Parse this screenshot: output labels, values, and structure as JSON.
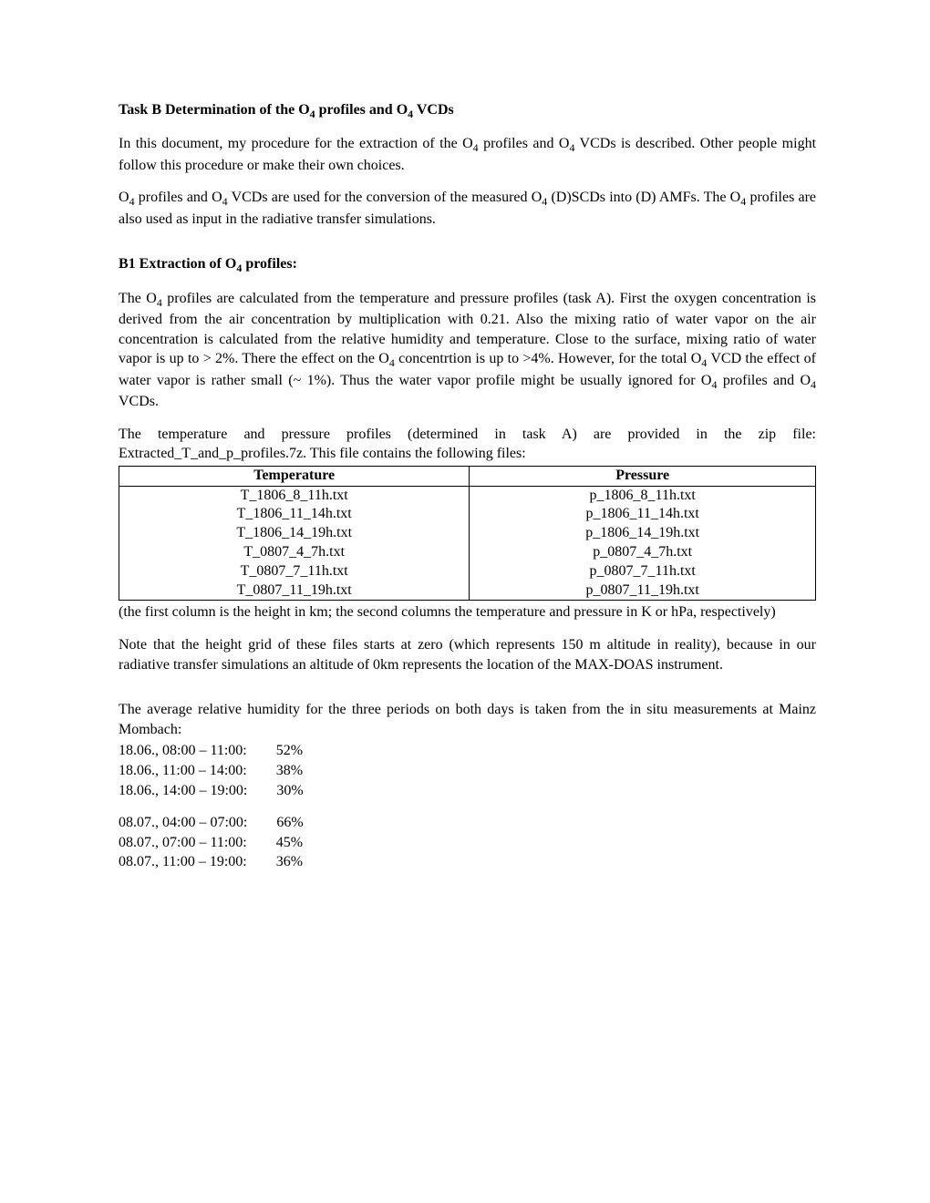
{
  "title_prefix": "Task B Determination of the O",
  "title_suffix": " profiles and O",
  "title_end": " VCDs",
  "sub4": "4",
  "p1a": "In this document, my procedure for the extraction of the O",
  "p1b": " profiles and O",
  "p1c": " VCDs is described. Other people might follow this procedure or make their own choices.",
  "p2a": "O",
  "p2b": " profiles and O",
  "p2c": " VCDs are used for the conversion of the measured O",
  "p2d": " (D)SCDs into (D) AMFs. The O",
  "p2e": " profiles are also used as input in the radiative transfer simulations.",
  "b1_title_a": "B1 Extraction of O",
  "b1_title_b": " profiles:",
  "p3a": "The O",
  "p3b": " profiles are calculated from the temperature and pressure profiles (task A). First the oxygen concentration is derived from the air concentration by multiplication with 0.21. Also the mixing ratio of water vapor on the air concentration is calculated from the relative humidity and temperature. Close to the surface, mixing ratio of water vapor is up to > 2%. There the effect on the O",
  "p3c": " concentrtion is up to >4%. However, for the total O",
  "p3d": " VCD the effect of water vapor is rather small (~ 1%). Thus the water vapor profile might be usually ignored for O",
  "p3e": " profiles and O",
  "p3f": " VCDs.",
  "p4": "The temperature and pressure profiles (determined in task A) are provided in the zip file: Extracted_T_and_p_profiles.7z. This file contains the following files:",
  "table": {
    "headers": [
      "Temperature",
      "Pressure"
    ],
    "rows": [
      [
        "T_1806_8_11h.txt",
        "p_1806_8_11h.txt"
      ],
      [
        "T_1806_11_14h.txt",
        "p_1806_11_14h.txt"
      ],
      [
        "T_1806_14_19h.txt",
        "p_1806_14_19h.txt"
      ],
      [
        "T_0807_4_7h.txt",
        "p_0807_4_7h.txt"
      ],
      [
        "T_0807_7_11h.txt",
        "p_0807_7_11h.txt"
      ],
      [
        "T_0807_11_19h.txt",
        "p_0807_11_19h.txt"
      ]
    ]
  },
  "p5": "(the first column is the height in km; the second columns the temperature and pressure in K or hPa, respectively)",
  "p6": "Note that the height grid of these files starts at zero (which represents 150 m altitude in reality), because in our radiative transfer simulations an altitude of 0km represents the location of the MAX-DOAS instrument.",
  "p7": "The average relative humidity for the three periods on both days is taken from the in situ measurements at Mainz Mombach:",
  "humidity": {
    "group1": [
      {
        "period": "18.06., 08:00 – 11:00:",
        "value": "52%"
      },
      {
        "period": "18.06., 11:00 – 14:00:",
        "value": "38%"
      },
      {
        "period": "18.06., 14:00 – 19:00:",
        "value": "30%"
      }
    ],
    "group2": [
      {
        "period": "08.07., 04:00 – 07:00:",
        "value": "66%"
      },
      {
        "period": "08.07., 07:00 – 11:00:",
        "value": "45%"
      },
      {
        "period": "08.07., 11:00 – 19:00:",
        "value": "36%"
      }
    ]
  }
}
